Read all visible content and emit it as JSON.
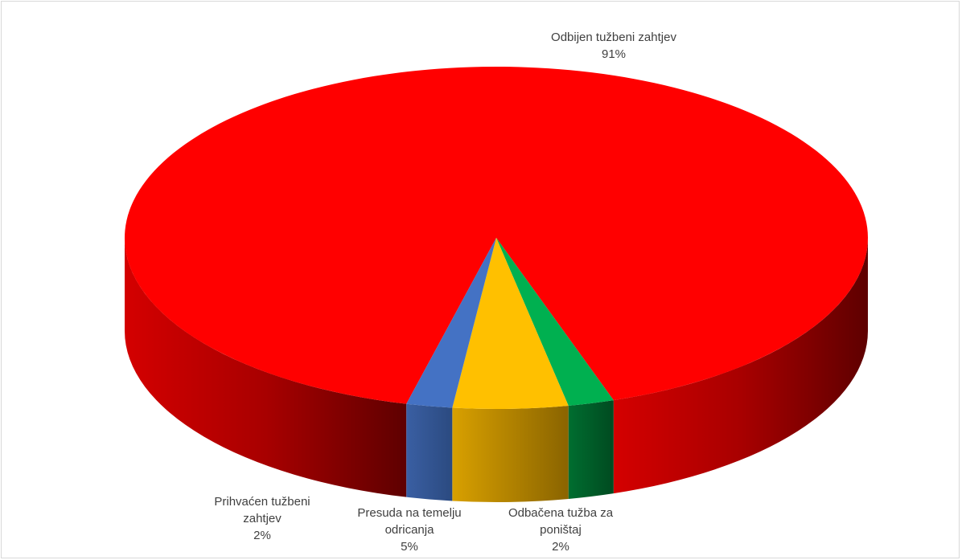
{
  "chart_data": {
    "type": "pie",
    "style": "3d",
    "categories": [
      "Odbijen tužbeni zahtjev",
      "Prihvaćen tužbeni zahtjev",
      "Presuda na temelju odricanja",
      "Odbačena tužba za poništaj"
    ],
    "values": [
      91,
      2,
      5,
      2
    ],
    "colors": [
      "#ff0000",
      "#4472c4",
      "#ffc000",
      "#00b050"
    ],
    "labels": [
      {
        "lines": [
          "Odbijen tužbeni zahtjev"
        ],
        "pct": "91%"
      },
      {
        "lines": [
          "Prihvaćen tužbeni",
          "zahtjev"
        ],
        "pct": "2%"
      },
      {
        "lines": [
          "Presuda na temelju",
          "odricanja"
        ],
        "pct": "5%"
      },
      {
        "lines": [
          "Odbačena tužba za",
          "poništaj"
        ],
        "pct": "2%"
      }
    ],
    "title": "",
    "legend": "none"
  }
}
